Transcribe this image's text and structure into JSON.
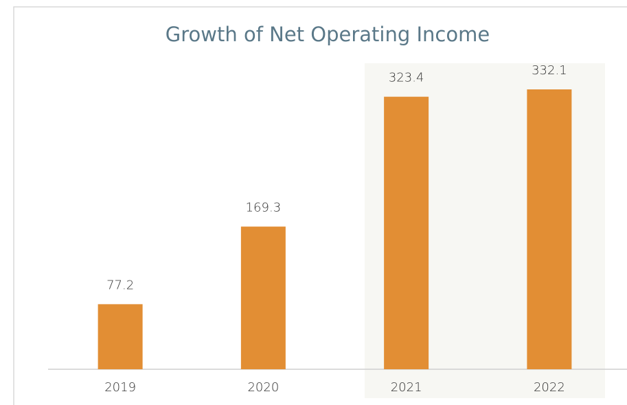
{
  "chart_data": {
    "type": "bar",
    "title": "Growth of Net Operating Income",
    "categories": [
      "2019",
      "2020",
      "2021",
      "2022"
    ],
    "values": [
      77.2,
      169.3,
      323.4,
      332.1
    ],
    "color": "#e28e34"
  }
}
